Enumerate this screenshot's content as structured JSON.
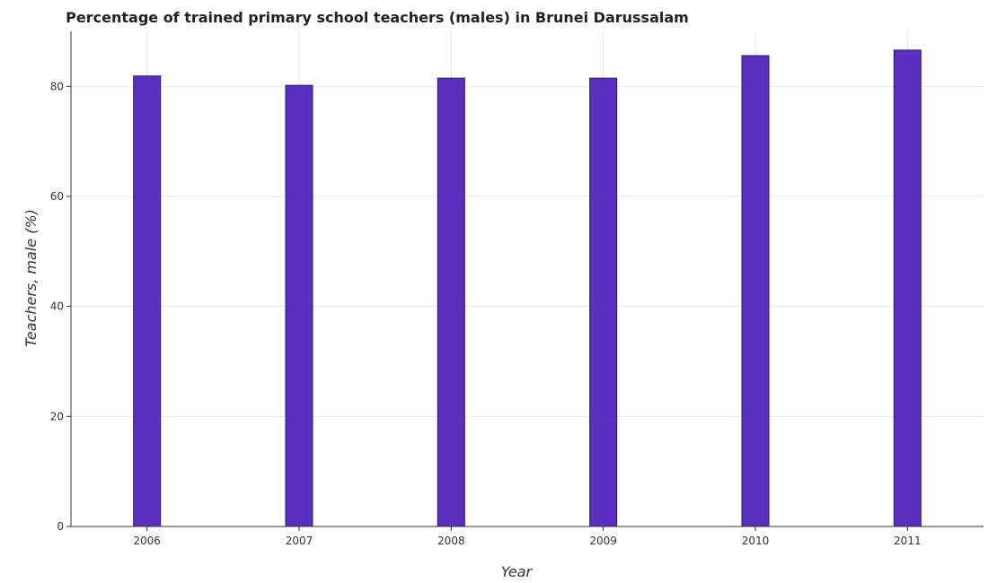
{
  "chart_data": {
    "type": "bar",
    "title": "Percentage of trained primary school teachers (males) in Brunei Darussalam",
    "xlabel": "Year",
    "ylabel": "Teachers, male (%)",
    "categories": [
      "2006",
      "2007",
      "2008",
      "2009",
      "2010",
      "2011"
    ],
    "values": [
      81.9,
      80.2,
      81.5,
      81.5,
      85.6,
      86.6
    ],
    "ylim": [
      0,
      90
    ],
    "yticks": [
      0,
      20,
      40,
      60,
      80
    ],
    "grid": true,
    "bar_color": "#5b2fbf",
    "bar_edge_color": "#2a1a5e"
  }
}
